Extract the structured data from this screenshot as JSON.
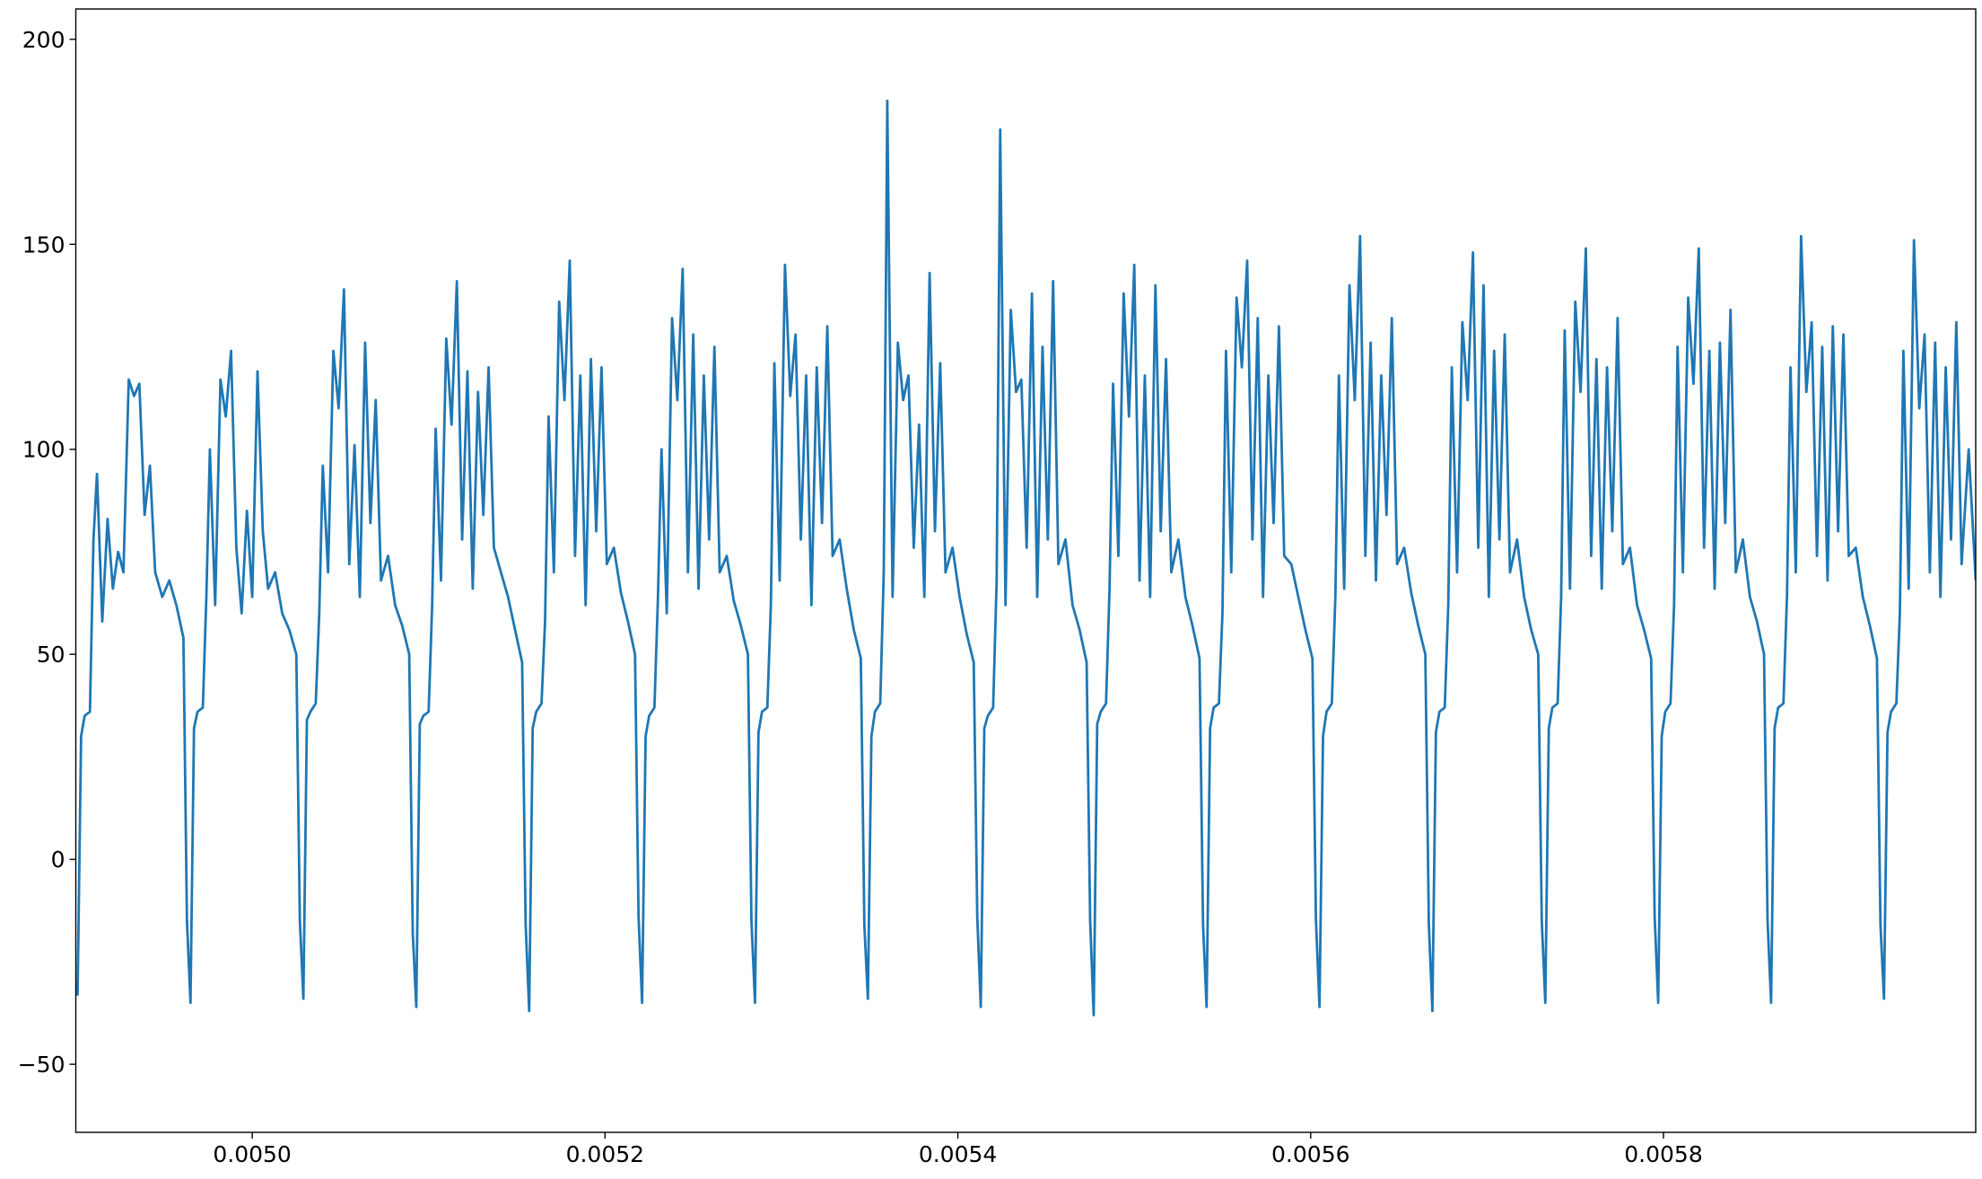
{
  "chart_data": {
    "type": "line",
    "x": [
      0.0049,
      0.004901,
      0.004903,
      0.004905,
      0.004908,
      0.00491,
      0.004912,
      0.004915,
      0.004918,
      0.004921,
      0.004924,
      0.004927,
      0.00493,
      0.004933,
      0.004936,
      0.004939,
      0.004942,
      0.004945,
      0.004949,
      0.004953,
      0.004957,
      0.004961,
      0.004963,
      0.004965,
      0.004967,
      0.004969,
      0.004972,
      0.004974,
      0.004976,
      0.004979,
      0.004982,
      0.004985,
      0.004988,
      0.004991,
      0.004994,
      0.004997,
      0.005,
      0.005003,
      0.005006,
      0.005009,
      0.005013,
      0.005017,
      0.005021,
      0.005025,
      0.005027,
      0.005029,
      0.005031,
      0.005033,
      0.005036,
      0.005038,
      0.00504,
      0.005043,
      0.005046,
      0.005049,
      0.005052,
      0.005055,
      0.005058,
      0.005061,
      0.005064,
      0.005067,
      0.00507,
      0.005073,
      0.005077,
      0.005081,
      0.005085,
      0.005089,
      0.005091,
      0.005093,
      0.005095,
      0.005097,
      0.0051,
      0.005102,
      0.005104,
      0.005107,
      0.00511,
      0.005113,
      0.005116,
      0.005119,
      0.005122,
      0.005125,
      0.005128,
      0.005131,
      0.005134,
      0.005137,
      0.005141,
      0.005145,
      0.005149,
      0.005153,
      0.005155,
      0.005157,
      0.005159,
      0.005161,
      0.005164,
      0.005166,
      0.005168,
      0.005171,
      0.005174,
      0.005177,
      0.00518,
      0.005183,
      0.005186,
      0.005189,
      0.005192,
      0.005195,
      0.005198,
      0.005201,
      0.005205,
      0.005209,
      0.005213,
      0.005217,
      0.005219,
      0.005221,
      0.005223,
      0.005225,
      0.005228,
      0.00523,
      0.005232,
      0.005235,
      0.005238,
      0.005241,
      0.005244,
      0.005247,
      0.00525,
      0.005253,
      0.005256,
      0.005259,
      0.005262,
      0.005265,
      0.005269,
      0.005273,
      0.005277,
      0.005281,
      0.005283,
      0.005285,
      0.005287,
      0.005289,
      0.005292,
      0.005294,
      0.005296,
      0.005299,
      0.005302,
      0.005305,
      0.005308,
      0.005311,
      0.005314,
      0.005317,
      0.00532,
      0.005323,
      0.005326,
      0.005329,
      0.005333,
      0.005337,
      0.005341,
      0.005345,
      0.005347,
      0.005349,
      0.005351,
      0.005353,
      0.005356,
      0.005358,
      0.00536,
      0.005363,
      0.005366,
      0.005369,
      0.005372,
      0.005375,
      0.005378,
      0.005381,
      0.005384,
      0.005387,
      0.00539,
      0.005393,
      0.005397,
      0.005401,
      0.005405,
      0.005409,
      0.005411,
      0.005413,
      0.005415,
      0.005417,
      0.00542,
      0.005422,
      0.005424,
      0.005427,
      0.00543,
      0.005433,
      0.005436,
      0.005439,
      0.005442,
      0.005445,
      0.005448,
      0.005451,
      0.005454,
      0.005457,
      0.005461,
      0.005465,
      0.005469,
      0.005473,
      0.005475,
      0.005477,
      0.005479,
      0.005481,
      0.005484,
      0.005486,
      0.005488,
      0.005491,
      0.005494,
      0.005497,
      0.0055,
      0.005503,
      0.005506,
      0.005509,
      0.005512,
      0.005515,
      0.005518,
      0.005521,
      0.005525,
      0.005529,
      0.005533,
      0.005537,
      0.005539,
      0.005541,
      0.005543,
      0.005545,
      0.005548,
      0.00555,
      0.005552,
      0.005555,
      0.005558,
      0.005561,
      0.005564,
      0.005567,
      0.00557,
      0.005573,
      0.005576,
      0.005579,
      0.005582,
      0.005585,
      0.005589,
      0.005593,
      0.005597,
      0.005601,
      0.005603,
      0.005605,
      0.005607,
      0.005609,
      0.005612,
      0.005614,
      0.005616,
      0.005619,
      0.005622,
      0.005625,
      0.005628,
      0.005631,
      0.005634,
      0.005637,
      0.00564,
      0.005643,
      0.005646,
      0.005649,
      0.005653,
      0.005657,
      0.005661,
      0.005665,
      0.005667,
      0.005669,
      0.005671,
      0.005673,
      0.005676,
      0.005678,
      0.00568,
      0.005683,
      0.005686,
      0.005689,
      0.005692,
      0.005695,
      0.005698,
      0.005701,
      0.005704,
      0.005707,
      0.00571,
      0.005713,
      0.005717,
      0.005721,
      0.005725,
      0.005729,
      0.005731,
      0.005733,
      0.005735,
      0.005737,
      0.00574,
      0.005742,
      0.005744,
      0.005747,
      0.00575,
      0.005753,
      0.005756,
      0.005759,
      0.005762,
      0.005765,
      0.005768,
      0.005771,
      0.005774,
      0.005777,
      0.005781,
      0.005785,
      0.005789,
      0.005793,
      0.005795,
      0.005797,
      0.005799,
      0.005801,
      0.005804,
      0.005806,
      0.005808,
      0.005811,
      0.005814,
      0.005817,
      0.00582,
      0.005823,
      0.005826,
      0.005829,
      0.005832,
      0.005835,
      0.005838,
      0.005841,
      0.005845,
      0.005849,
      0.005853,
      0.005857,
      0.005859,
      0.005861,
      0.005863,
      0.005865,
      0.005868,
      0.00587,
      0.005872,
      0.005875,
      0.005878,
      0.005881,
      0.005884,
      0.005887,
      0.00589,
      0.005893,
      0.005896,
      0.005899,
      0.005902,
      0.005905,
      0.005909,
      0.005913,
      0.005917,
      0.005921,
      0.005923,
      0.005925,
      0.005927,
      0.005929,
      0.005932,
      0.005934,
      0.005936,
      0.005939,
      0.005942,
      0.005945,
      0.005948,
      0.005951,
      0.005954,
      0.005957,
      0.00596,
      0.005963,
      0.005966,
      0.005969,
      0.005973,
      0.005977
    ],
    "series": [
      {
        "color": "#1f77b4",
        "values": [
          -30,
          -33,
          30,
          35,
          36,
          78,
          94,
          58,
          83,
          66,
          75,
          70,
          117,
          113,
          116,
          84,
          96,
          70,
          64,
          68,
          62,
          54,
          -15,
          -35,
          32,
          36,
          37,
          64,
          100,
          62,
          117,
          108,
          124,
          76,
          60,
          85,
          64,
          119,
          80,
          66,
          70,
          60,
          56,
          50,
          -15,
          -34,
          34,
          36,
          38,
          60,
          96,
          70,
          124,
          110,
          139,
          72,
          101,
          64,
          126,
          82,
          112,
          68,
          74,
          62,
          57,
          50,
          -18,
          -36,
          33,
          35,
          36,
          62,
          105,
          68,
          127,
          106,
          141,
          78,
          119,
          66,
          114,
          84,
          120,
          76,
          70,
          64,
          56,
          48,
          -16,
          -37,
          32,
          36,
          38,
          58,
          108,
          70,
          136,
          112,
          146,
          74,
          118,
          62,
          122,
          80,
          120,
          72,
          76,
          65,
          58,
          50,
          -14,
          -35,
          30,
          35,
          37,
          64,
          100,
          60,
          132,
          112,
          144,
          70,
          128,
          66,
          118,
          78,
          125,
          70,
          74,
          63,
          57,
          50,
          -15,
          -35,
          31,
          36,
          37,
          62,
          121,
          68,
          145,
          113,
          128,
          78,
          118,
          62,
          120,
          82,
          130,
          74,
          78,
          66,
          56,
          49,
          -16,
          -34,
          30,
          36,
          38,
          70,
          185,
          64,
          126,
          112,
          118,
          76,
          106,
          64,
          143,
          80,
          121,
          70,
          76,
          64,
          55,
          48,
          -14,
          -36,
          32,
          35,
          37,
          68,
          178,
          62,
          134,
          114,
          117,
          76,
          138,
          64,
          125,
          78,
          141,
          72,
          78,
          62,
          56,
          48,
          -15,
          -38,
          33,
          36,
          38,
          66,
          116,
          74,
          138,
          108,
          145,
          68,
          118,
          64,
          140,
          80,
          122,
          70,
          78,
          64,
          57,
          49,
          -16,
          -36,
          32,
          37,
          38,
          60,
          124,
          70,
          137,
          120,
          146,
          78,
          132,
          64,
          118,
          82,
          130,
          74,
          72,
          64,
          56,
          49,
          -15,
          -36,
          30,
          36,
          38,
          64,
          118,
          66,
          140,
          112,
          152,
          74,
          126,
          68,
          118,
          84,
          132,
          72,
          76,
          65,
          57,
          50,
          -16,
          -37,
          31,
          36,
          37,
          62,
          120,
          70,
          131,
          112,
          148,
          76,
          140,
          64,
          124,
          78,
          128,
          70,
          78,
          64,
          56,
          50,
          -15,
          -35,
          32,
          37,
          38,
          64,
          129,
          66,
          136,
          114,
          149,
          74,
          122,
          66,
          120,
          80,
          132,
          72,
          76,
          62,
          56,
          49,
          -14,
          -35,
          30,
          36,
          38,
          62,
          125,
          70,
          137,
          116,
          149,
          76,
          124,
          66,
          126,
          82,
          134,
          70,
          78,
          64,
          58,
          50,
          -15,
          -35,
          32,
          37,
          38,
          64,
          120,
          70,
          152,
          114,
          131,
          74,
          125,
          68,
          130,
          80,
          128,
          74,
          76,
          64,
          57,
          49,
          -16,
          -34,
          31,
          36,
          38,
          60,
          124,
          66,
          151,
          110,
          128,
          70,
          126,
          64,
          120,
          78,
          131,
          72,
          100,
          68
        ]
      }
    ],
    "xlim": [
      0.0049,
      0.005977
    ],
    "ylim": [
      -66.6,
      207.4
    ],
    "xticks": [
      {
        "value": 0.005,
        "label": "0.0050"
      },
      {
        "value": 0.0052,
        "label": "0.0052"
      },
      {
        "value": 0.0054,
        "label": "0.0054"
      },
      {
        "value": 0.0056,
        "label": "0.0056"
      },
      {
        "value": 0.0058,
        "label": "0.0058"
      }
    ],
    "yticks": [
      {
        "value": -50,
        "label": "−50"
      },
      0,
      50,
      100,
      150,
      200
    ]
  }
}
